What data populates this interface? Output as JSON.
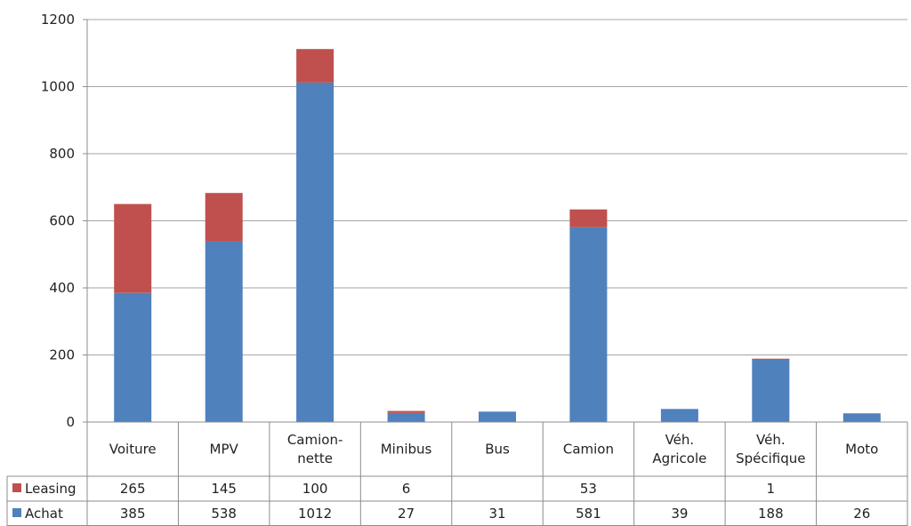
{
  "chart_data": {
    "type": "bar",
    "stacked": true,
    "categories": [
      [
        "Voiture"
      ],
      [
        "MPV"
      ],
      [
        "Camion-",
        "nette"
      ],
      [
        "Minibus"
      ],
      [
        "Bus"
      ],
      [
        "Camion"
      ],
      [
        "Véh.",
        "Agricole"
      ],
      [
        "Véh.",
        "Spécifique"
      ],
      [
        "Moto"
      ]
    ],
    "series": [
      {
        "name": "Achat",
        "color": "#4f81bd",
        "values": [
          385,
          538,
          1012,
          27,
          31,
          581,
          39,
          188,
          26
        ]
      },
      {
        "name": "Leasing",
        "color": "#c0504d",
        "values": [
          265,
          145,
          100,
          6,
          null,
          53,
          null,
          1,
          null
        ]
      }
    ],
    "yticks": [
      "0",
      "200",
      "400",
      "600",
      "800",
      "1000",
      "1200"
    ],
    "ylim": [
      0,
      1200
    ],
    "grid": true,
    "legend": "data-table",
    "data_table": true
  }
}
